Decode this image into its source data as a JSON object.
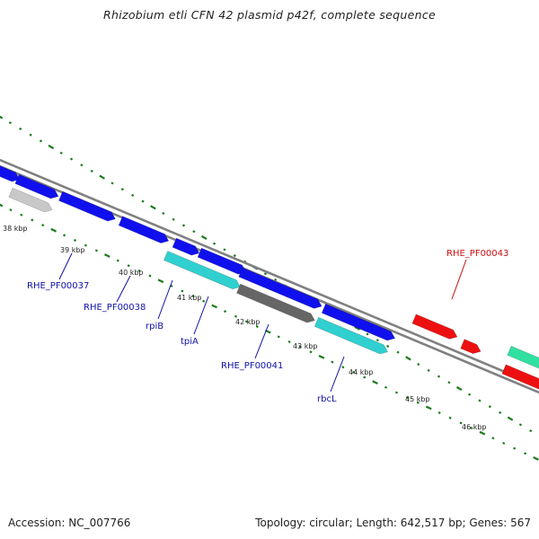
{
  "title": "Rhizobium etli CFN 42 plasmid p42f, complete sequence",
  "footer": {
    "accession": "Accession: NC_007766",
    "topology": "Topology: circular",
    "length": "Length: 642,517 bp",
    "genes": "Genes: 567"
  },
  "colors": {
    "backbone": "#808080",
    "tick": "#1a7a1a",
    "forward_gene": "#1010ee",
    "rna_gene": "#30d0d0",
    "pseudo_gene": "#666666",
    "light_gray_gene": "#c8c8c8",
    "red_gene": "#ee1010",
    "green_gene": "#30e0a0",
    "label_blue": "#1010aa",
    "label_red": "#cc1010"
  },
  "kbp_ticks": [
    "38 kbp",
    "39 kbp",
    "40 kbp",
    "41 kbp",
    "42 kbp",
    "43 kbp",
    "44 kbp",
    "45 kbp",
    "46 kbp"
  ],
  "gene_labels": [
    {
      "text": "RHE_PF00037",
      "color": "label_blue"
    },
    {
      "text": "RHE_PF00038",
      "color": "label_blue"
    },
    {
      "text": "rpiB",
      "color": "label_blue"
    },
    {
      "text": "tpiA",
      "color": "label_blue"
    },
    {
      "text": "RHE_PF00041",
      "color": "label_blue"
    },
    {
      "text": "rbcL",
      "color": "label_blue"
    },
    {
      "text": "RHE_PF00043",
      "color": "label_red"
    }
  ]
}
